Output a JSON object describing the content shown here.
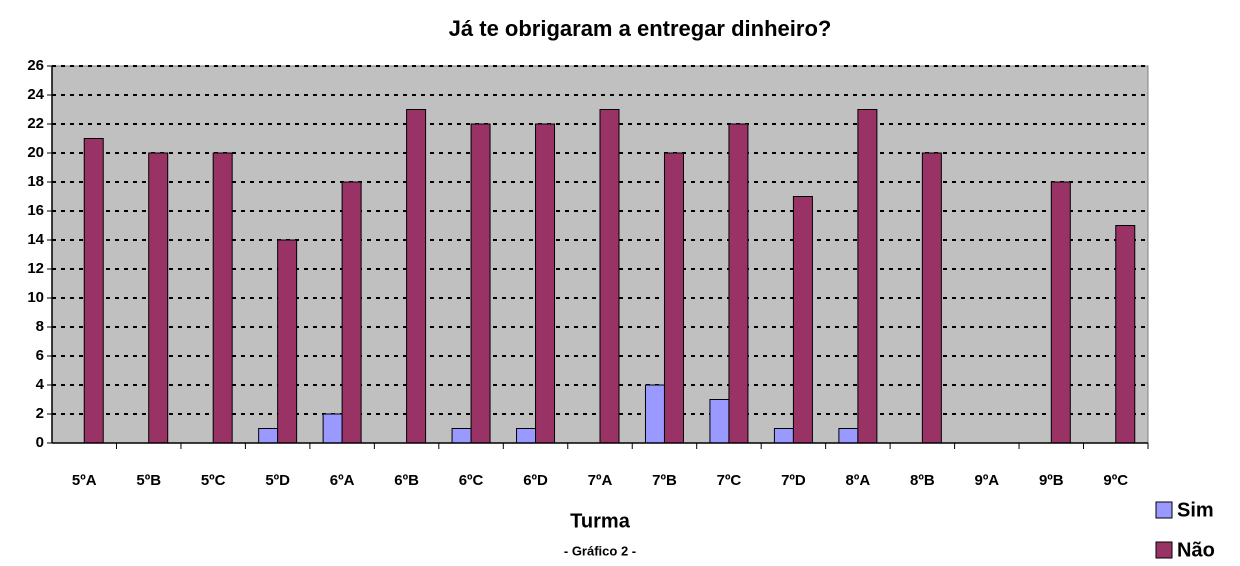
{
  "chart_data": {
    "type": "bar",
    "title": "Já te obrigaram a entregar dinheiro?",
    "x_label": "Turma",
    "caption": "- Gráfico 2 -",
    "categories": [
      "5ºA",
      "5ºB",
      "5ºC",
      "5ºD",
      "6ºA",
      "6ºB",
      "6ºC",
      "6ºD",
      "7ºA",
      "7ºB",
      "7ºC",
      "7ºD",
      "8ºA",
      "8ºB",
      "9ºA",
      "9ºB",
      "9ºC"
    ],
    "series": [
      {
        "name": "Sim",
        "color": "#9999ff",
        "values": [
          0,
          0,
          0,
          1,
          2,
          0,
          1,
          1,
          0,
          4,
          3,
          1,
          1,
          0,
          0,
          0,
          0
        ]
      },
      {
        "name": "Não",
        "color": "#993366",
        "values": [
          21,
          20,
          20,
          14,
          18,
          23,
          22,
          22,
          23,
          20,
          22,
          17,
          23,
          20,
          0,
          18,
          15
        ]
      }
    ],
    "ylim": [
      0,
      26
    ],
    "yticks": [
      0,
      2,
      4,
      6,
      8,
      10,
      12,
      14,
      16,
      18,
      20,
      22,
      24,
      26
    ],
    "grid": true,
    "legend": "bottom-right"
  }
}
